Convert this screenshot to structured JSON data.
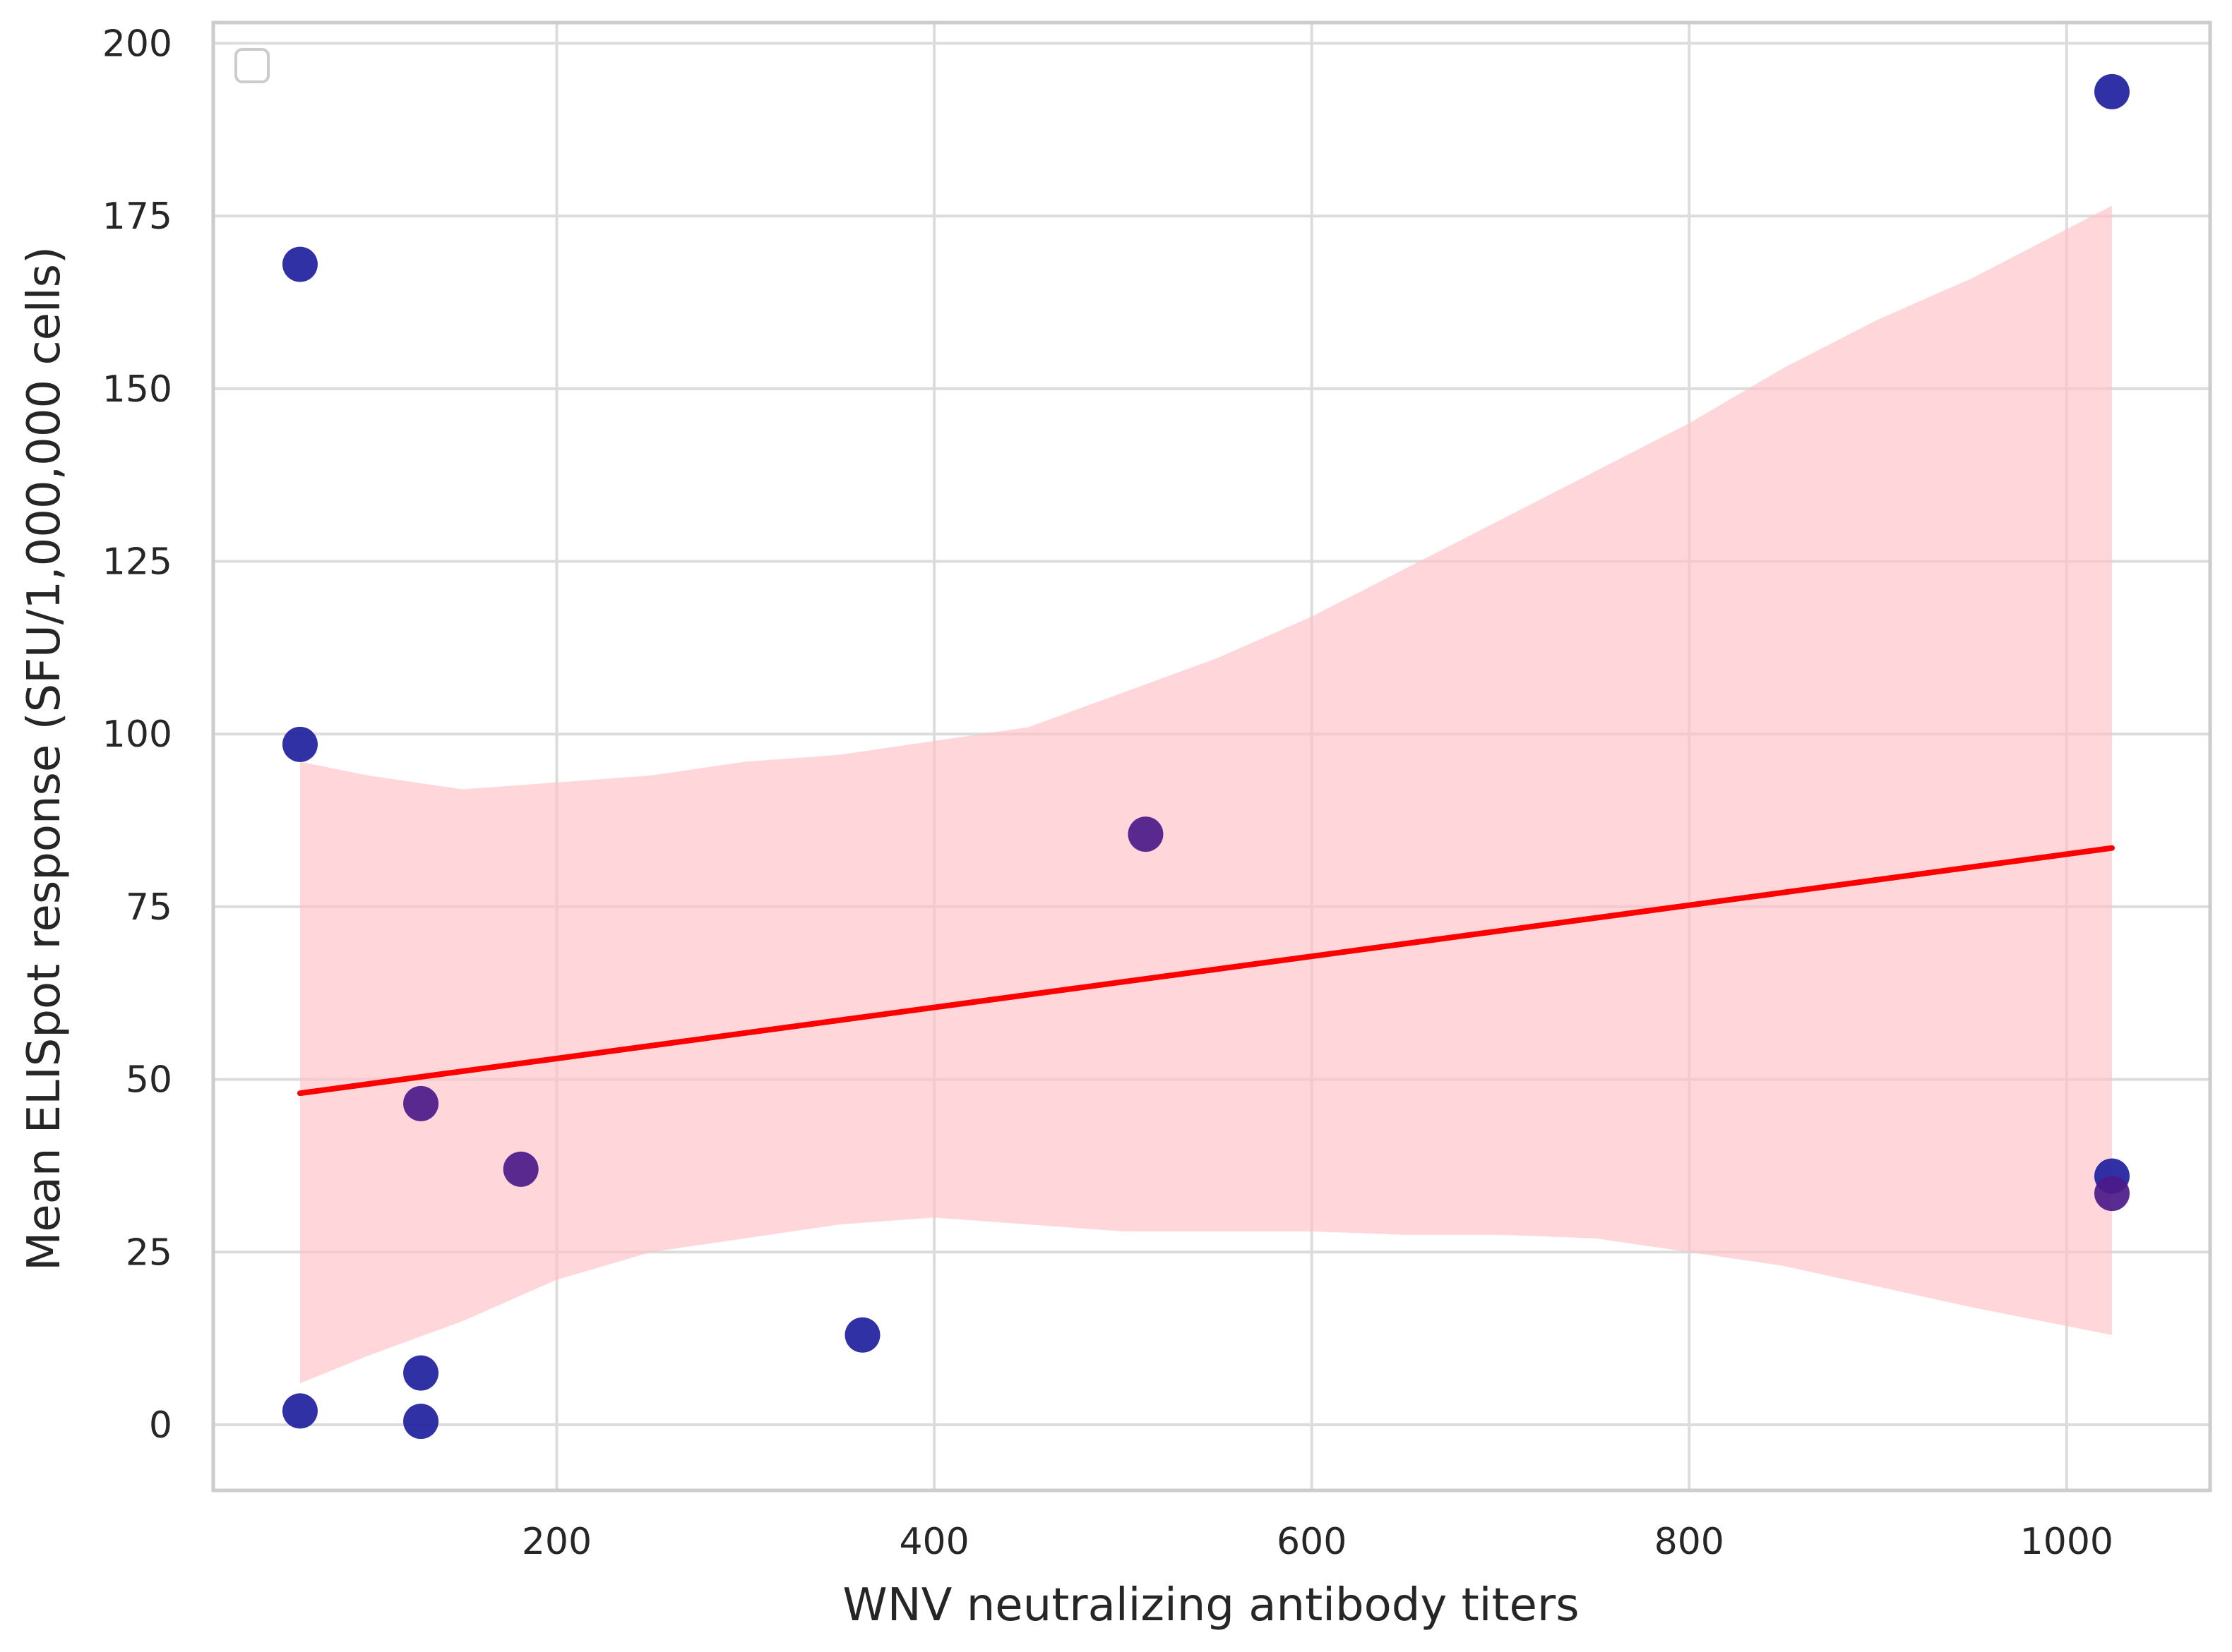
{
  "chart_data": {
    "type": "scatter",
    "title": "",
    "xlabel": "WNV neutralizing antibody titers",
    "ylabel": "Mean ELISpot response (SFU/1,000,000 cells)",
    "xlim": [
      18,
      1076
    ],
    "ylim": [
      -9.5,
      203
    ],
    "x_ticks": [
      200,
      400,
      600,
      800,
      1000
    ],
    "y_ticks": [
      0,
      25,
      50,
      75,
      100,
      125,
      150,
      175,
      200
    ],
    "x_tick_labels": [
      "200",
      "400",
      "600",
      "800",
      "1000"
    ],
    "y_tick_labels": [
      "0",
      "25",
      "50",
      "75",
      "100",
      "125",
      "150",
      "175",
      "200"
    ],
    "grid": true,
    "legend": {
      "placement": "top-left",
      "entries": []
    },
    "colors": {
      "points_blue": "#1f1f9e",
      "points_purple": "#4b1a8a",
      "regression_line": "#ff0000",
      "confidence_band": "#ffc0c4",
      "grid": "#dcdcdc",
      "spine": "#cccccc"
    },
    "series": [
      {
        "kind": "points",
        "points": [
          {
            "x": 64,
            "y": 168,
            "color": "blue"
          },
          {
            "x": 64,
            "y": 98.5,
            "color": "blue"
          },
          {
            "x": 64,
            "y": 2,
            "color": "blue"
          },
          {
            "x": 128,
            "y": 46.5,
            "color": "purple"
          },
          {
            "x": 128,
            "y": 7.5,
            "color": "blue"
          },
          {
            "x": 128,
            "y": 0.5,
            "color": "blue"
          },
          {
            "x": 181,
            "y": 37,
            "color": "purple"
          },
          {
            "x": 362,
            "y": 13,
            "color": "blue"
          },
          {
            "x": 512,
            "y": 85.5,
            "color": "purple"
          },
          {
            "x": 1024,
            "y": 193,
            "color": "blue"
          },
          {
            "x": 1024,
            "y": 36,
            "color": "blue"
          },
          {
            "x": 1024,
            "y": 33.5,
            "color": "purple"
          }
        ]
      },
      {
        "kind": "regression_line",
        "x": [
          64,
          1024
        ],
        "y": [
          48,
          83.5
        ]
      },
      {
        "kind": "confidence_band",
        "x": [
          64,
          100,
          150,
          200,
          250,
          300,
          350,
          400,
          450,
          500,
          550,
          600,
          650,
          700,
          750,
          800,
          850,
          900,
          950,
          1024
        ],
        "upper": [
          96,
          94,
          92,
          93,
          94,
          96,
          97,
          99,
          101,
          106,
          111,
          117,
          124,
          131,
          138,
          145,
          153,
          160,
          166,
          176.5
        ],
        "lower": [
          6,
          10,
          15,
          21,
          25,
          27,
          29,
          30,
          29,
          28,
          28,
          28,
          27.5,
          27.5,
          27,
          25,
          23,
          20,
          17,
          13
        ]
      }
    ]
  }
}
